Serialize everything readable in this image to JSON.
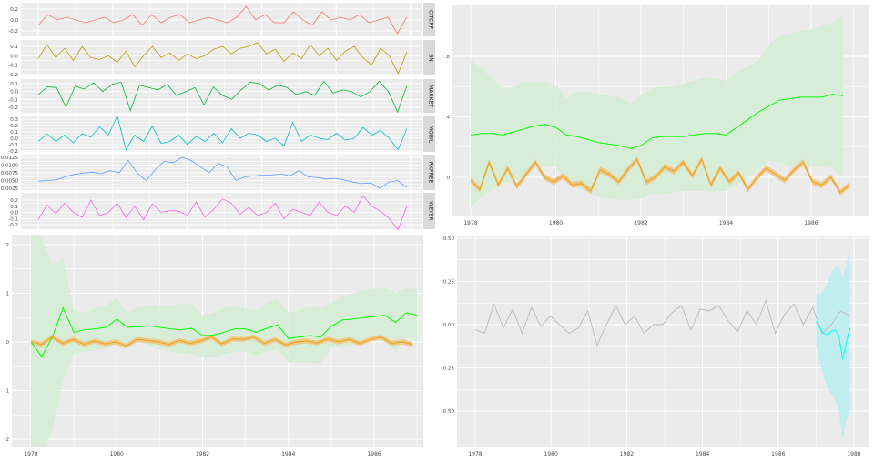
{
  "chart_data": [
    {
      "type": "line",
      "layout": "facets",
      "x_start": 1978,
      "x_step": 0.25,
      "grid": true,
      "facets": [
        {
          "name": "CITCRP",
          "color": "#f8766d",
          "yticks": [
            "0.2",
            "0.0",
            "-0.2"
          ],
          "ytick_values": [
            0.2,
            0,
            -0.2
          ],
          "values": [
            -0.1,
            0.1,
            0.0,
            0.05,
            0.0,
            -0.05,
            0.0,
            0.05,
            -0.05,
            0.0,
            0.1,
            -0.1,
            0.1,
            -0.05,
            0.05,
            0.1,
            -0.05,
            0.0,
            0.05,
            0.0,
            -0.05,
            0.05,
            0.25,
            0.0,
            0.1,
            -0.05,
            -0.05,
            0.15,
            0.0,
            -0.1,
            0.15,
            0.0,
            0.05,
            0.0,
            0.1,
            -0.05,
            0.0,
            0.05,
            -0.25,
            0.05
          ]
        },
        {
          "name": "BN",
          "color": "#b79f00",
          "yticks": [
            "0.1",
            "0.0",
            "-0.1",
            "-0.2"
          ],
          "ytick_values": [
            0.1,
            0,
            -0.1,
            -0.2
          ],
          "values": [
            -0.03,
            0.12,
            -0.02,
            0.08,
            -0.05,
            0.1,
            -0.02,
            -0.04,
            0.0,
            -0.07,
            0.05,
            -0.12,
            0.0,
            0.1,
            -0.02,
            0.03,
            -0.05,
            0.02,
            -0.03,
            0.0,
            0.07,
            0.1,
            0.02,
            0.08,
            0.1,
            0.14,
            0.02,
            0.07,
            -0.06,
            0.03,
            -0.03,
            0.12,
            0.0,
            0.08,
            -0.05,
            0.05,
            0.1,
            -0.02,
            -0.1,
            0.08,
            0.0,
            -0.19,
            0.04
          ]
        },
        {
          "name": "MARKET",
          "color": "#00ba38",
          "yticks": [
            "0.1",
            "0.0",
            "-0.1",
            "-0.2"
          ],
          "ytick_values": [
            0.1,
            0,
            -0.1,
            -0.2
          ],
          "values": [
            -0.04,
            0.06,
            0.05,
            -0.2,
            0.07,
            0.03,
            0.11,
            0.0,
            0.09,
            0.12,
            -0.24,
            0.08,
            0.05,
            0.02,
            0.09,
            -0.05,
            0.0,
            0.05,
            -0.17,
            0.06,
            -0.05,
            -0.1,
            0.02,
            0.12,
            0.1,
            0.02,
            0.08,
            0.05,
            -0.04,
            0.0,
            -0.05,
            0.13,
            -0.02,
            0.02,
            0.0,
            -0.07,
            0.0,
            0.13,
            0.0,
            -0.26,
            0.07
          ]
        },
        {
          "name": "MOBIL",
          "color": "#00bfc4",
          "yticks": [
            "0.3",
            "0.2",
            "0.1",
            "0.0",
            "-0.1",
            "-0.2"
          ],
          "ytick_values": [
            0.3,
            0.2,
            0.1,
            0,
            -0.1,
            -0.2
          ],
          "values": [
            -0.05,
            0.07,
            -0.05,
            0.05,
            -0.07,
            0.07,
            0.02,
            0.18,
            0.05,
            0.35,
            -0.18,
            0.05,
            -0.05,
            0.19,
            -0.08,
            -0.05,
            0.05,
            -0.1,
            0.03,
            -0.05,
            0.08,
            -0.07,
            0.15,
            0.0,
            0.08,
            0.05,
            -0.05,
            0.0,
            -0.12,
            0.25,
            -0.05,
            0.05,
            0.0,
            -0.02,
            0.08,
            -0.03,
            0.0,
            0.17,
            0.05,
            0.12,
            0.0,
            -0.18,
            0.15
          ]
        },
        {
          "name": "RKFREE",
          "color": "#619cff",
          "yticks": [
            "0.0125",
            "0.0100",
            "0.0075",
            "0.0050",
            "0.0025"
          ],
          "ytick_values": [
            0.0125,
            0.01,
            0.0075,
            0.005,
            0.0025
          ],
          "values": [
            0.0048,
            0.005,
            0.0052,
            0.0062,
            0.007,
            0.0074,
            0.0077,
            0.0072,
            0.0082,
            0.0075,
            0.0115,
            0.0075,
            0.005,
            0.0085,
            0.0112,
            0.0108,
            0.0125,
            0.0115,
            0.0095,
            0.0075,
            0.0105,
            0.0095,
            0.005,
            0.0062,
            0.0065,
            0.0068,
            0.0068,
            0.0072,
            0.0065,
            0.0082,
            0.0062,
            0.006,
            0.0055,
            0.0057,
            0.0052,
            0.0045,
            0.004,
            0.0042,
            0.0025,
            0.0045,
            0.005,
            0.0028
          ]
        },
        {
          "name": "WEYER",
          "color": "#f564e3",
          "yticks": [
            "0.2",
            "0.1",
            "0.0",
            "-0.1",
            "-0.2"
          ],
          "ytick_values": [
            0.2,
            0.1,
            0,
            -0.1,
            -0.2
          ],
          "values": [
            -0.12,
            0.12,
            -0.02,
            0.15,
            0.0,
            -0.08,
            0.2,
            -0.05,
            0.0,
            0.15,
            -0.08,
            0.1,
            -0.12,
            0.14,
            0.0,
            0.03,
            0.02,
            -0.05,
            0.17,
            -0.08,
            0.05,
            0.22,
            0.15,
            -0.03,
            0.08,
            -0.05,
            0.0,
            0.15,
            -0.1,
            0.05,
            0.0,
            -0.05,
            0.17,
            0.0,
            -0.05,
            0.1,
            0.0,
            0.27,
            0.1,
            0.02,
            -0.1,
            -0.28,
            0.1
          ]
        }
      ]
    },
    {
      "type": "line",
      "x_start": 1978,
      "x_step": 0.25,
      "xticks": [
        "1978",
        "1980",
        "1982",
        "1984",
        "1986"
      ],
      "yticks": [
        ".8",
        ".4",
        "0"
      ],
      "ytick_values": [
        0.8,
        0.4,
        0
      ],
      "grid": true,
      "series": [
        {
          "color": "#00ff00",
          "band_color": "#d3edd3",
          "values": [
            0.28,
            0.29,
            0.29,
            0.28,
            0.3,
            0.32,
            0.34,
            0.35,
            0.33,
            0.28,
            0.27,
            0.25,
            0.23,
            0.22,
            0.21,
            0.19,
            0.21,
            0.26,
            0.27,
            0.27,
            0.27,
            0.28,
            0.29,
            0.29,
            0.28,
            0.33,
            0.38,
            0.43,
            0.47,
            0.51,
            0.52,
            0.53,
            0.53,
            0.53,
            0.55,
            0.54
          ],
          "upper": [
            0.78,
            0.72,
            0.66,
            0.58,
            0.6,
            0.63,
            0.63,
            0.63,
            0.61,
            0.52,
            0.56,
            0.57,
            0.55,
            0.54,
            0.53,
            0.49,
            0.54,
            0.59,
            0.6,
            0.6,
            0.62,
            0.64,
            0.66,
            0.65,
            0.64,
            0.7,
            0.73,
            0.77,
            0.88,
            0.93,
            0.95,
            0.97,
            0.98,
            1.0,
            1.02,
            1.07
          ],
          "lower": [
            -0.2,
            -0.13,
            -0.08,
            -0.04,
            -0.02,
            0.0,
            0.07,
            0.08,
            0.07,
            -0.02,
            -0.07,
            -0.1,
            -0.13,
            -0.14,
            -0.15,
            -0.15,
            -0.14,
            -0.11,
            -0.11,
            -0.1,
            -0.09,
            -0.09,
            -0.09,
            -0.09,
            -0.09,
            -0.05,
            0.0,
            0.05,
            0.11,
            0.1,
            0.08,
            0.06,
            0.07,
            0.07,
            0.06,
            0.0
          ]
        },
        {
          "color": "#e8a317",
          "band_color": "#f1c27a",
          "values": [
            -0.02,
            -0.08,
            0.1,
            -0.05,
            0.06,
            -0.06,
            0.02,
            0.1,
            0.0,
            -0.03,
            0.01,
            -0.05,
            -0.04,
            -0.09,
            0.05,
            0.02,
            -0.03,
            0.05,
            0.12,
            -0.03,
            0.0,
            0.07,
            0.04,
            0.1,
            0.01,
            0.12,
            -0.05,
            0.06,
            -0.03,
            0.03,
            -0.08,
            0.0,
            0.06,
            0.02,
            -0.02,
            0.05,
            0.1,
            -0.03,
            -0.05,
            0.0,
            -0.1,
            -0.05
          ],
          "band": 0.02
        }
      ]
    },
    {
      "type": "line",
      "x_start": 1978,
      "x_step": 0.25,
      "xticks": [
        "1978",
        "1980",
        "1982",
        "1984",
        "1986"
      ],
      "yticks": [
        "2",
        "1",
        "0",
        "-1",
        "-2"
      ],
      "ytick_values": [
        2,
        1,
        0,
        -1,
        -2
      ],
      "grid": true,
      "series": [
        {
          "color": "#00ff00",
          "band_color": "#d3edd3",
          "values": [
            0.0,
            -0.3,
            0.1,
            0.7,
            0.2,
            0.25,
            0.27,
            0.3,
            0.47,
            0.3,
            0.31,
            0.33,
            0.3,
            0.27,
            0.25,
            0.28,
            0.13,
            0.14,
            0.2,
            0.27,
            0.27,
            0.2,
            0.28,
            0.35,
            0.07,
            0.1,
            0.13,
            0.1,
            0.32,
            0.45,
            0.47,
            0.5,
            0.52,
            0.55,
            0.4,
            0.6,
            0.55
          ],
          "upper": [
            2.5,
            2.1,
            1.6,
            1.7,
            0.65,
            0.6,
            0.7,
            0.75,
            0.9,
            0.6,
            0.7,
            0.75,
            0.75,
            0.75,
            0.78,
            0.8,
            0.55,
            0.6,
            0.7,
            0.72,
            0.7,
            0.65,
            0.8,
            0.9,
            0.6,
            0.65,
            0.72,
            0.7,
            0.8,
            0.95,
            1.0,
            1.05,
            1.1,
            1.12,
            1.0,
            1.12,
            1.08
          ],
          "lower": [
            -2.5,
            -2.3,
            -1.8,
            -0.8,
            -0.25,
            -0.2,
            -0.18,
            -0.15,
            0.0,
            -0.02,
            0.0,
            -0.05,
            -0.15,
            -0.2,
            -0.22,
            -0.25,
            -0.3,
            -0.32,
            -0.25,
            -0.2,
            -0.2,
            -0.28,
            -0.2,
            -0.15,
            -0.42,
            -0.42,
            -0.42,
            -0.45,
            -0.1,
            -0.12,
            -0.05,
            0.0,
            0.05,
            0.0,
            -0.2,
            0.1,
            0.0
          ]
        },
        {
          "color": "#e8a317",
          "band_color": "#f1c27a",
          "values": [
            0.0,
            -0.05,
            0.1,
            -0.03,
            0.05,
            -0.05,
            0.02,
            -0.04,
            0.0,
            -0.08,
            0.05,
            0.03,
            0.0,
            -0.05,
            0.03,
            -0.03,
            0.02,
            0.1,
            -0.04,
            0.06,
            0.05,
            0.1,
            -0.03,
            0.05,
            -0.06,
            0.0,
            0.02,
            -0.02,
            0.06,
            0.0,
            0.05,
            -0.03,
            0.05,
            0.1,
            -0.03,
            0.0,
            -0.05
          ],
          "band": 0.05
        }
      ]
    },
    {
      "type": "line",
      "xticks": [
        "1978",
        "1980",
        "1982",
        "1984",
        "1986",
        "1988"
      ],
      "yticks": [
        "0.50",
        "0.25",
        "0.00",
        "-0.25",
        "-0.50"
      ],
      "ytick_values": [
        0.5,
        0.25,
        0,
        -0.25,
        -0.5
      ],
      "grid": true,
      "series": [
        {
          "color": "#bdbdbd",
          "x_start": 1978,
          "x_step": 0.25,
          "values": [
            -0.03,
            -0.05,
            0.12,
            -0.02,
            0.09,
            -0.05,
            0.1,
            -0.01,
            0.05,
            0.0,
            -0.05,
            -0.02,
            0.08,
            -0.12,
            0.0,
            0.11,
            0.0,
            0.05,
            -0.05,
            0.0,
            0.0,
            0.07,
            0.11,
            -0.03,
            0.09,
            0.08,
            0.11,
            0.02,
            -0.04,
            0.08,
            0.0,
            0.14,
            -0.05,
            0.06,
            0.12,
            0.0,
            0.1,
            -0.05,
            0.0,
            0.08,
            0.05
          ]
        },
        {
          "color": "#00ffff",
          "band_color": "#b9eeee",
          "x_start": 1987,
          "x_step": 0.1,
          "values": [
            0.02,
            -0.02,
            -0.05,
            -0.06,
            -0.04,
            -0.03,
            -0.06,
            -0.2,
            -0.1,
            -0.02
          ],
          "upper": [
            0.18,
            0.17,
            0.2,
            0.24,
            0.3,
            0.33,
            0.34,
            0.27,
            0.35,
            0.45
          ],
          "lower": [
            -0.12,
            -0.22,
            -0.3,
            -0.37,
            -0.4,
            -0.43,
            -0.5,
            -0.66,
            -0.55,
            -0.5
          ]
        }
      ]
    }
  ]
}
